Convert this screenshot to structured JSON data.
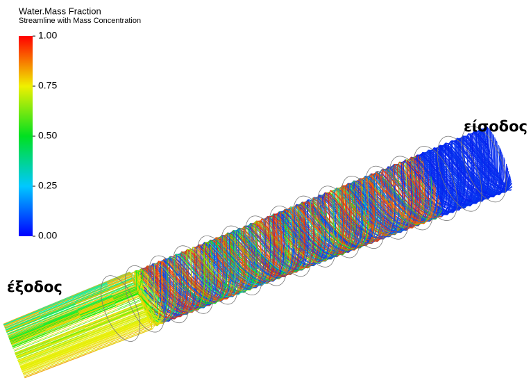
{
  "legend": {
    "title": "Water.Mass Fraction",
    "subtitle": "Streamline with Mass Concentration",
    "range": [
      0,
      1
    ],
    "ticks": [
      {
        "value": 1,
        "label": "1.00"
      },
      {
        "value": 0.75,
        "label": "0.75"
      },
      {
        "value": 0.5,
        "label": "0.50"
      },
      {
        "value": 0.25,
        "label": "0.25"
      },
      {
        "value": 0,
        "label": "0.00"
      }
    ]
  },
  "labels": {
    "inlet": "είσοδος",
    "outlet": "έξοδος"
  }
}
